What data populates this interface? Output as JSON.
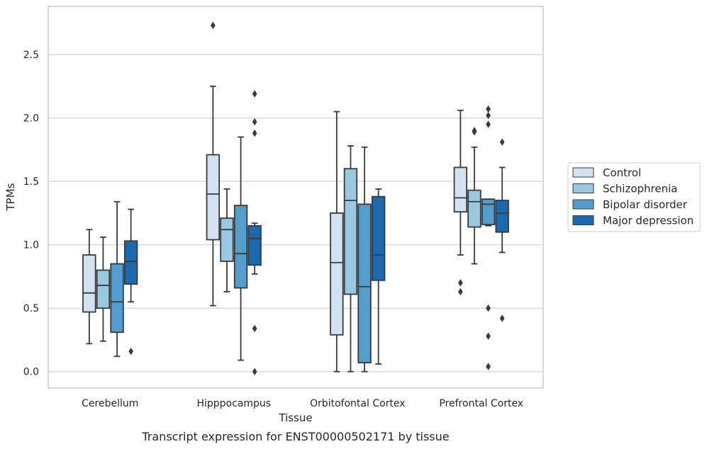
{
  "chart_data": {
    "type": "box",
    "title": "",
    "xlabel": "Tissue",
    "ylabel": "TPMs",
    "caption": "Transcript expression for ENST00000502171 by tissue",
    "ylim": [
      -0.13,
      2.88
    ],
    "y_ticks": [
      "0.0",
      "0.5",
      "1.0",
      "1.5",
      "2.0",
      "2.5"
    ],
    "grid": "horizontal",
    "legend_position": "right",
    "categories": [
      "Cerebellum",
      "Hipppocampus",
      "Orbitofontal Cortex",
      "Prefrontal Cortex"
    ],
    "series": [
      {
        "name": "Control",
        "color": "#d1e3f3",
        "boxes": [
          {
            "q1": 0.47,
            "median": 0.62,
            "q3": 0.92,
            "whisker_low": 0.22,
            "whisker_high": 1.12,
            "outliers": []
          },
          {
            "q1": 1.04,
            "median": 1.4,
            "q3": 1.71,
            "whisker_low": 0.52,
            "whisker_high": 2.25,
            "outliers": [
              2.73
            ]
          },
          {
            "q1": 0.29,
            "median": 0.86,
            "q3": 1.25,
            "whisker_low": 0.0,
            "whisker_high": 2.05,
            "outliers": []
          },
          {
            "q1": 1.26,
            "median": 1.37,
            "q3": 1.61,
            "whisker_low": 0.92,
            "whisker_high": 2.06,
            "outliers": [
              0.7,
              0.63
            ]
          }
        ]
      },
      {
        "name": "Schizophrenia",
        "color": "#9ac8e0",
        "boxes": [
          {
            "q1": 0.5,
            "median": 0.68,
            "q3": 0.8,
            "whisker_low": 0.24,
            "whisker_high": 1.06,
            "outliers": []
          },
          {
            "q1": 0.87,
            "median": 1.12,
            "q3": 1.21,
            "whisker_low": 0.63,
            "whisker_high": 1.44,
            "outliers": []
          },
          {
            "q1": 0.61,
            "median": 1.35,
            "q3": 1.6,
            "whisker_low": 0.0,
            "whisker_high": 1.78,
            "outliers": []
          },
          {
            "q1": 1.14,
            "median": 1.34,
            "q3": 1.43,
            "whisker_low": 0.85,
            "whisker_high": 1.77,
            "outliers": [
              1.9,
              1.89
            ]
          }
        ]
      },
      {
        "name": "Bipolar disorder",
        "color": "#529dcc",
        "boxes": [
          {
            "q1": 0.31,
            "median": 0.55,
            "q3": 0.85,
            "whisker_low": 0.12,
            "whisker_high": 1.34,
            "outliers": []
          },
          {
            "q1": 0.66,
            "median": 0.93,
            "q3": 1.31,
            "whisker_low": 0.09,
            "whisker_high": 1.85,
            "outliers": []
          },
          {
            "q1": 0.07,
            "median": 0.67,
            "q3": 1.32,
            "whisker_low": 0.0,
            "whisker_high": 1.77,
            "outliers": []
          },
          {
            "q1": 1.16,
            "median": 1.32,
            "q3": 1.36,
            "whisker_low": 1.15,
            "whisker_high": 1.36,
            "outliers": [
              2.07,
              2.02,
              1.95,
              0.5,
              0.28,
              0.04
            ]
          }
        ]
      },
      {
        "name": "Major depression",
        "color": "#1b69af",
        "boxes": [
          {
            "q1": 0.69,
            "median": 0.87,
            "q3": 1.03,
            "whisker_low": 0.55,
            "whisker_high": 1.28,
            "outliers": [
              0.16
            ]
          },
          {
            "q1": 0.84,
            "median": 1.05,
            "q3": 1.15,
            "whisker_low": 0.77,
            "whisker_high": 1.17,
            "outliers": [
              2.19,
              1.97,
              1.88,
              0.34,
              0.0
            ]
          },
          {
            "q1": 0.72,
            "median": 0.92,
            "q3": 1.38,
            "whisker_low": 0.06,
            "whisker_high": 1.44,
            "outliers": []
          },
          {
            "q1": 1.1,
            "median": 1.25,
            "q3": 1.35,
            "whisker_low": 0.94,
            "whisker_high": 1.61,
            "outliers": [
              1.81,
              0.42
            ]
          }
        ]
      }
    ]
  }
}
